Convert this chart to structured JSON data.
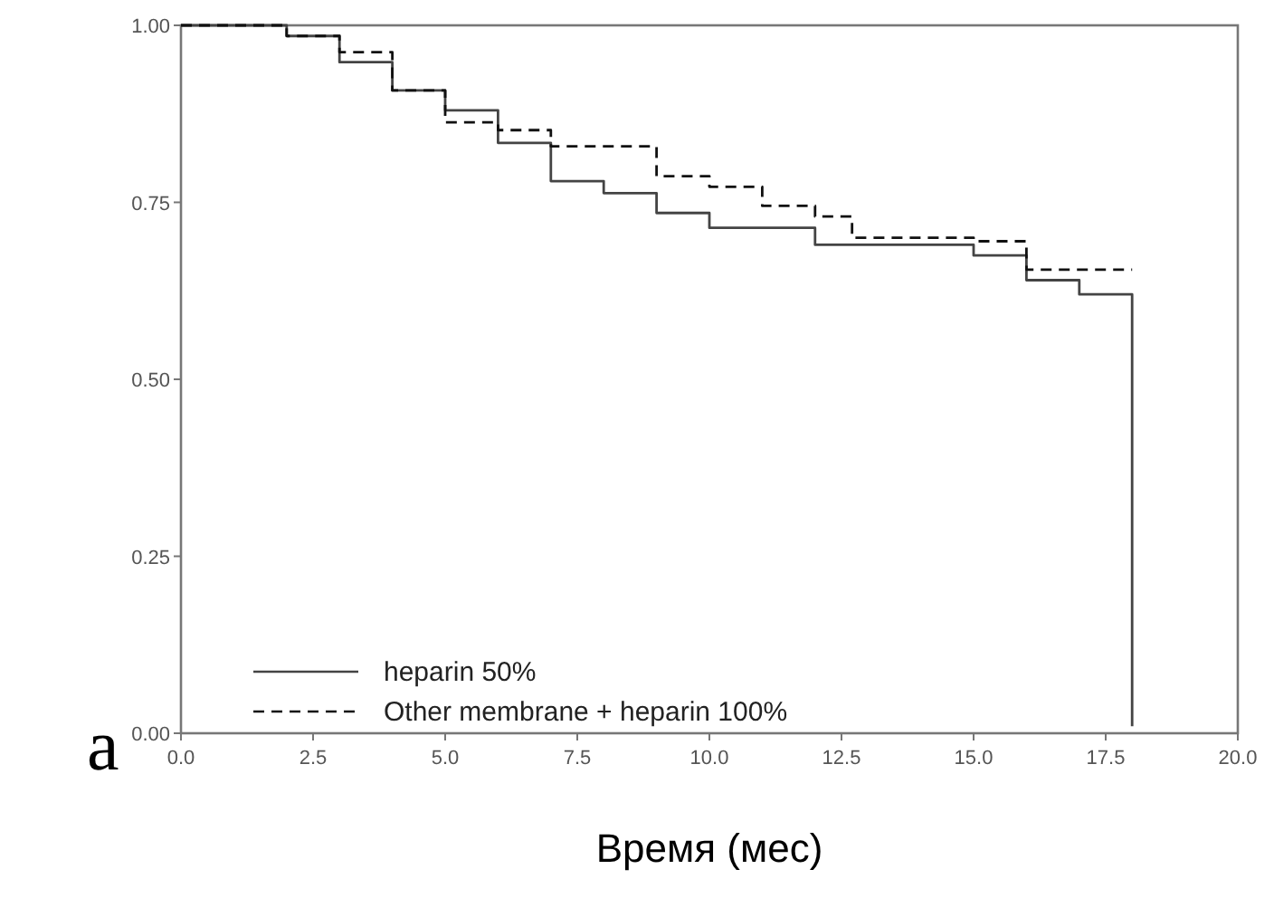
{
  "chart_data": {
    "type": "step",
    "xlabel": "Время (мес)",
    "annotations": [
      "a"
    ],
    "xlim": [
      0,
      20
    ],
    "ylim": [
      0,
      1
    ],
    "xticks": [
      {
        "value": 0,
        "label": "0.0"
      },
      {
        "value": 2.5,
        "label": "2.5"
      },
      {
        "value": 5,
        "label": "5.0"
      },
      {
        "value": 7.5,
        "label": "7.5"
      },
      {
        "value": 10,
        "label": "10.0"
      },
      {
        "value": 12.5,
        "label": "12.5"
      },
      {
        "value": 15,
        "label": "15.0"
      },
      {
        "value": 17.5,
        "label": "17.5"
      },
      {
        "value": 20,
        "label": "20.0"
      }
    ],
    "yticks": [
      {
        "value": 0,
        "label": "0.00"
      },
      {
        "value": 0.25,
        "label": "0.25"
      },
      {
        "value": 0.5,
        "label": "0.50"
      },
      {
        "value": 0.75,
        "label": "0.75"
      },
      {
        "value": 1,
        "label": "1.00"
      }
    ],
    "grid": false,
    "legend": "bottom left",
    "series": [
      {
        "name": "heparin 50%",
        "color": "#444444",
        "line_style": "solid",
        "x": [
          0,
          2,
          3,
          4,
          5,
          6,
          7,
          8,
          9,
          10,
          12,
          15,
          16,
          17,
          18
        ],
        "values": [
          1,
          0.985,
          0.948,
          0.908,
          0.88,
          0.834,
          0.78,
          0.763,
          0.735,
          0.714,
          0.69,
          0.675,
          0.64,
          0.62,
          0.01
        ]
      },
      {
        "name": "Other membrane + heparin 100%",
        "color": "#111111",
        "line_style": "dashed",
        "x": [
          0,
          2,
          3,
          4,
          5,
          6,
          7,
          9,
          10,
          11,
          12,
          12.7,
          15,
          16,
          18
        ],
        "values": [
          1,
          0.985,
          0.962,
          0.908,
          0.863,
          0.852,
          0.829,
          0.787,
          0.772,
          0.745,
          0.73,
          0.7,
          0.695,
          0.655,
          0.655
        ]
      }
    ]
  }
}
